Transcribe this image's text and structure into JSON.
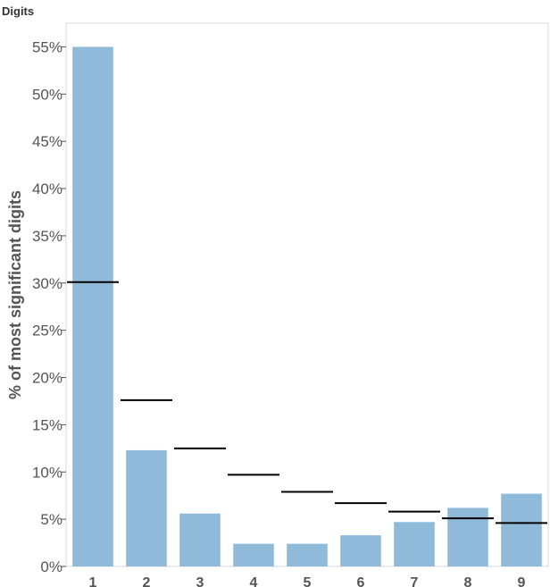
{
  "chart_data": {
    "type": "bar",
    "field_label": "Digits",
    "ylabel": "% of most significant digits",
    "xlabel": "",
    "categories": [
      "1",
      "2",
      "3",
      "4",
      "5",
      "6",
      "7",
      "8",
      "9"
    ],
    "values": [
      55.0,
      12.3,
      5.6,
      2.4,
      2.4,
      3.3,
      4.7,
      6.2,
      7.7
    ],
    "reference_values": [
      30.1,
      17.6,
      12.5,
      9.7,
      7.9,
      6.7,
      5.8,
      5.1,
      4.6
    ],
    "ylim": [
      0,
      57.5
    ],
    "yticks": [
      0,
      5,
      10,
      15,
      20,
      25,
      30,
      35,
      40,
      45,
      50,
      55
    ],
    "ytick_labels": [
      "0%",
      "5%",
      "10%",
      "15%",
      "20%",
      "25%",
      "30%",
      "35%",
      "40%",
      "45%",
      "50%",
      "55%"
    ],
    "grid": false,
    "colors": {
      "bar": "#8fbad9",
      "reference_line": "#000000",
      "frame": "#d9d9d9"
    }
  }
}
